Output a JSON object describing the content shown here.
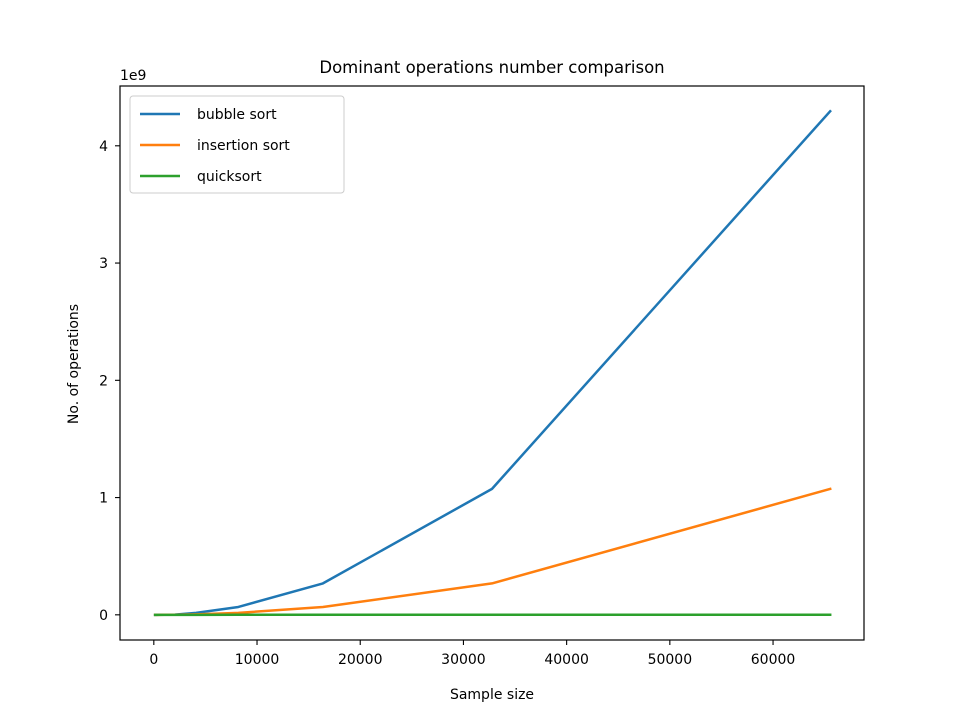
{
  "chart_data": {
    "type": "line",
    "title": "Dominant operations number comparison",
    "xlabel": "Sample size",
    "ylabel": "No. of operations",
    "y_offset_label": "1e9",
    "xlim": [
      -3277,
      68813
    ],
    "ylim": [
      -0.2147,
      4.51
    ],
    "x_ticks": [
      0,
      10000,
      20000,
      30000,
      40000,
      50000,
      60000
    ],
    "x_tick_labels": [
      "0",
      "10000",
      "20000",
      "30000",
      "40000",
      "50000",
      "60000"
    ],
    "y_ticks": [
      0,
      1,
      2,
      3,
      4
    ],
    "y_tick_labels": [
      "0",
      "1",
      "2",
      "3",
      "4"
    ],
    "y_unit_multiplier": 1000000000,
    "grid": false,
    "legend_position": "upper-left",
    "x": [
      128,
      256,
      512,
      1024,
      2048,
      4096,
      8192,
      16384,
      32768,
      65536
    ],
    "series": [
      {
        "name": "bubble sort",
        "color": "#1f77b4",
        "values": [
          8.1e-06,
          3.26e-05,
          0.000131,
          0.000524,
          0.0021,
          0.0168,
          0.0671,
          0.268,
          1.074,
          4.295
        ]
      },
      {
        "name": "insertion sort",
        "color": "#ff7f0e",
        "values": [
          2e-06,
          8.2e-06,
          3.27e-05,
          0.000131,
          0.000524,
          0.0042,
          0.0168,
          0.0671,
          0.268,
          1.074
        ]
      },
      {
        "name": "quicksort",
        "color": "#2ca02c",
        "values": [
          9e-07,
          2e-06,
          4.6e-06,
          1.02e-05,
          2.25e-05,
          4.9e-05,
          0.000106,
          0.000229,
          0.00049,
          0.00105
        ]
      }
    ]
  }
}
